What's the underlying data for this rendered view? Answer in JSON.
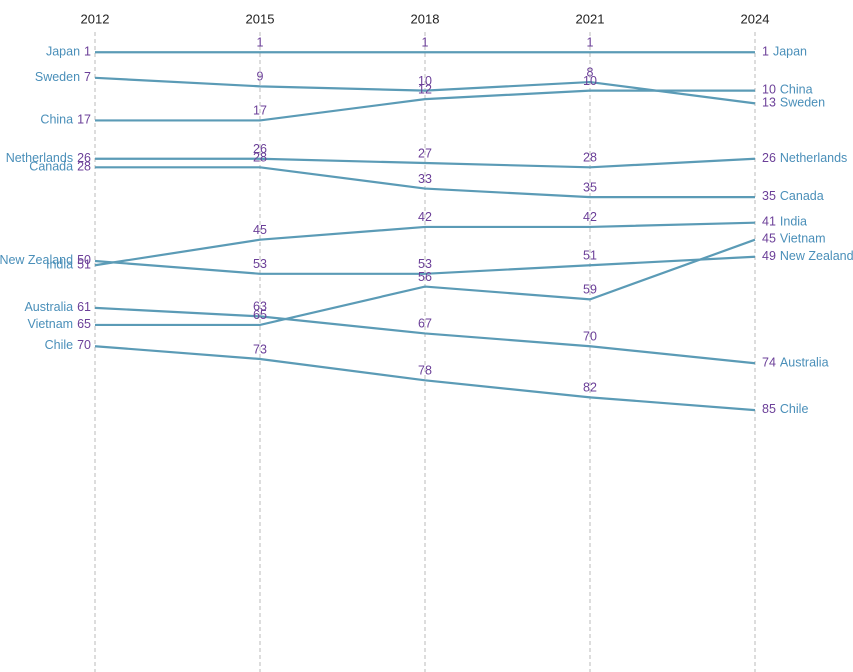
{
  "chart_data": {
    "type": "bump",
    "x": [
      2012,
      2015,
      2018,
      2021,
      2024
    ],
    "xlim": [
      2012,
      2024
    ],
    "xticks": [
      2012,
      2015,
      2018,
      2021,
      2024
    ],
    "ylim": [
      0,
      146
    ],
    "y_inverted": true,
    "grid": true,
    "series": [
      {
        "name": "Japan",
        "color": "#5b9bb6",
        "values": [
          1,
          1,
          1,
          1,
          1
        ]
      },
      {
        "name": "Sweden",
        "color": "#5b9bb6",
        "values": [
          7,
          9,
          10,
          8,
          13
        ]
      },
      {
        "name": "China",
        "color": "#5b9bb6",
        "values": [
          17,
          17,
          12,
          10,
          10
        ]
      },
      {
        "name": "Netherlands",
        "color": "#5b9bb6",
        "values": [
          26,
          26,
          27,
          28,
          26
        ]
      },
      {
        "name": "Canada",
        "color": "#5b9bb6",
        "values": [
          28,
          28,
          33,
          35,
          35
        ]
      },
      {
        "name": "India",
        "color": "#5b9bb6",
        "values": [
          51,
          45,
          42,
          42,
          41
        ]
      },
      {
        "name": "New Zealand",
        "color": "#5b9bb6",
        "values": [
          50,
          53,
          53,
          51,
          49
        ]
      },
      {
        "name": "Australia",
        "color": "#5b9bb6",
        "values": [
          61,
          63,
          67,
          70,
          74
        ]
      },
      {
        "name": "Vietnam",
        "color": "#5b9bb6",
        "values": [
          65,
          65,
          56,
          59,
          45
        ]
      },
      {
        "name": "Chile",
        "color": "#5b9bb6",
        "values": [
          70,
          73,
          78,
          82,
          85
        ]
      }
    ]
  }
}
